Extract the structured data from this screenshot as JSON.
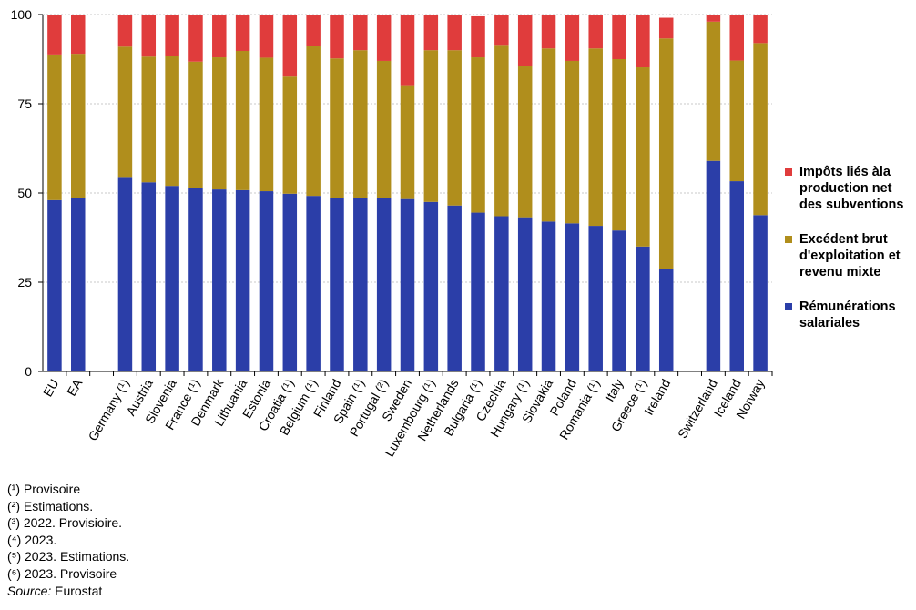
{
  "chart_data": {
    "type": "bar",
    "stacked": true,
    "categories": [
      "EU",
      "EA",
      "",
      "Germany (¹)",
      "Austria",
      "Slovenia",
      "France (¹)",
      "Denmark",
      "Lithuania",
      "Estonia",
      "Croatia (¹)",
      "Belgium (¹)",
      "Finland",
      "Spain (¹)",
      "Portugal (²)",
      "Sweden",
      "Luxembourg (¹)",
      "Netherlands",
      "Bulgaria (¹)",
      "Czechia",
      "Hungary (¹)",
      "Slovakia",
      "Poland",
      "Romania (¹)",
      "Italy",
      "Greece (¹)",
      "Ireland",
      "",
      "Switzerland",
      "Iceland",
      "Norway"
    ],
    "series": [
      {
        "name": "Rémunérations salariales",
        "color": "#2b3ea8",
        "values": [
          48,
          48.5,
          null,
          54.5,
          53,
          52,
          51.5,
          51,
          50.8,
          50.5,
          49.8,
          49.2,
          48.5,
          48.5,
          48.5,
          48.3,
          47.5,
          46.5,
          44.5,
          43.5,
          43.2,
          42,
          41.5,
          40.8,
          39.5,
          35,
          28.8,
          null,
          59,
          53.3,
          43.8
        ]
      },
      {
        "name": "Excédent brut d'exploitation et revenu mixte",
        "color": "#b08e1c",
        "values": [
          40.8,
          40.5,
          null,
          36.5,
          35.2,
          36.3,
          35.3,
          37,
          39,
          37.4,
          32.8,
          42,
          39.2,
          41.5,
          38.5,
          31.9,
          42.5,
          43.5,
          43.5,
          48,
          42.4,
          48.5,
          45.5,
          49.7,
          48,
          50.2,
          64.5,
          null,
          39,
          33.8,
          48.2
        ]
      },
      {
        "name": "Impôts liés àla production net des subventions",
        "color": "#e03c3c",
        "values": [
          11.2,
          11,
          null,
          9,
          11.8,
          11.7,
          13.2,
          12,
          10.2,
          12.1,
          17.4,
          8.8,
          12.3,
          10,
          13,
          19.8,
          10,
          10,
          11.5,
          8.5,
          14.4,
          9.5,
          13,
          9.5,
          12.5,
          14.8,
          5.8,
          null,
          2,
          12.9,
          8
        ]
      }
    ],
    "ylim": [
      0,
      100
    ],
    "yticks": [
      0,
      25,
      50,
      75,
      100
    ],
    "grid": true,
    "legend": "right"
  },
  "legend": {
    "items": [
      {
        "label": "Impôts liés àla production net des subventions",
        "color": "#e03c3c"
      },
      {
        "label": "Excédent brut d'exploitation et revenu mixte",
        "color": "#b08e1c"
      },
      {
        "label": "Rémunérations salariales",
        "color": "#2b3ea8"
      }
    ]
  },
  "notes": {
    "lines": [
      "(¹) Provisoire",
      "(²) Estimations.",
      "(³) 2022. Provisioire.",
      "(⁴) 2023.",
      "(⁵) 2023. Estimations.",
      "(⁶) 2023. Provisoire"
    ],
    "source_label": "Source:",
    "source_text": " Eurostat"
  }
}
